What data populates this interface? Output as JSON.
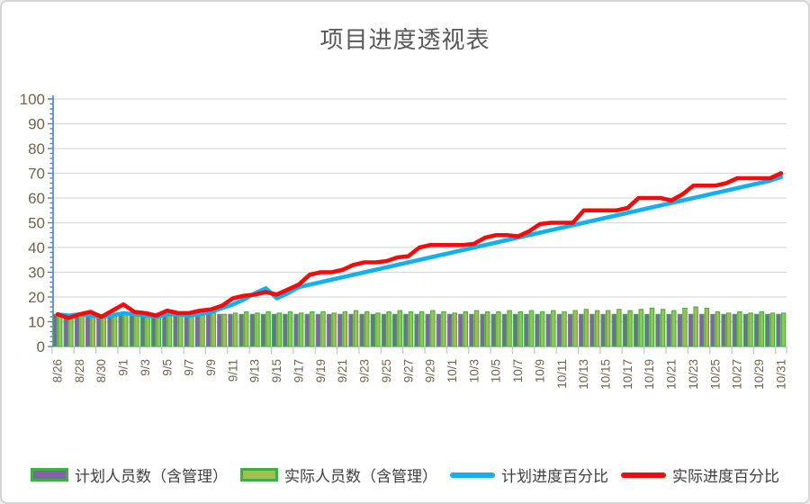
{
  "title": "项目进度透视表",
  "style": {
    "background": "#ffffff",
    "frame_border": "#d5d5d5",
    "title_color": "#595959",
    "grid_color": "#d9d9d9",
    "y_axis_color": "#4f81bd",
    "x_axis_color": "#c3c3c3",
    "axis_label_color": "#70634f",
    "legend_text_color": "#3f3f3f"
  },
  "chart_data": {
    "type": "combo-bar-line",
    "title": "项目进度透视表",
    "xlabel": "",
    "ylabel": "",
    "ylim": [
      0,
      100
    ],
    "y_ticks": [
      0,
      10,
      20,
      30,
      40,
      50,
      60,
      70,
      80,
      90,
      100
    ],
    "grid": true,
    "legend_position": "bottom",
    "x_label_every": 2,
    "x": [
      "8/26",
      "8/27",
      "8/28",
      "8/29",
      "8/30",
      "8/31",
      "9/1",
      "9/2",
      "9/3",
      "9/4",
      "9/5",
      "9/6",
      "9/7",
      "9/8",
      "9/9",
      "9/10",
      "9/11",
      "9/12",
      "9/13",
      "9/14",
      "9/15",
      "9/16",
      "9/17",
      "9/18",
      "9/19",
      "9/20",
      "9/21",
      "9/22",
      "9/23",
      "9/24",
      "9/25",
      "9/26",
      "9/27",
      "9/28",
      "9/29",
      "9/30",
      "10/1",
      "10/2",
      "10/3",
      "10/4",
      "10/5",
      "10/6",
      "10/7",
      "10/8",
      "10/9",
      "10/10",
      "10/11",
      "10/12",
      "10/13",
      "10/14",
      "10/15",
      "10/16",
      "10/17",
      "10/18",
      "10/19",
      "10/20",
      "10/21",
      "10/22",
      "10/23",
      "10/24",
      "10/25",
      "10/26",
      "10/27",
      "10/28",
      "10/29",
      "10/30",
      "10/31"
    ],
    "x_tick_labels": [
      "8/26",
      "8/28",
      "8/30",
      "9/1",
      "9/3",
      "9/5",
      "9/7",
      "9/9",
      "9/11",
      "9/13",
      "9/15",
      "9/17",
      "9/19",
      "9/21",
      "9/23",
      "9/25",
      "9/27",
      "9/29",
      "10/1",
      "10/3",
      "10/5",
      "10/7",
      "10/9",
      "10/11",
      "10/13",
      "10/15",
      "10/17",
      "10/19",
      "10/21",
      "10/23",
      "10/25",
      "10/27",
      "10/29",
      "10/31"
    ],
    "series": [
      {
        "name": "计划人员数（含管理）",
        "type": "bar",
        "color": "#8064a2",
        "border": "#3cb043",
        "values": [
          13,
          13,
          13,
          13,
          13,
          13,
          13,
          13,
          13,
          13,
          13,
          13,
          13,
          13,
          13,
          13,
          13,
          13,
          13,
          13,
          13,
          13,
          13,
          13,
          13,
          13,
          13,
          13,
          13,
          13,
          13,
          13,
          13,
          13,
          13,
          13,
          13,
          13,
          13,
          13,
          13,
          13,
          13,
          13,
          13,
          13,
          13,
          13,
          13,
          13,
          13,
          13,
          13,
          13,
          13,
          13,
          13,
          13,
          13,
          13,
          13,
          13,
          13,
          13,
          13,
          13,
          13
        ]
      },
      {
        "name": "实际人员数（含管理）",
        "type": "bar",
        "color": "#a2bd51",
        "border": "#3cb043",
        "values": [
          12.5,
          13,
          12.5,
          13,
          13,
          13.5,
          13,
          12.5,
          13,
          13.5,
          13,
          13.5,
          13,
          13.5,
          13.5,
          13,
          13.5,
          14,
          13.5,
          14,
          13.5,
          14,
          13.5,
          14,
          14,
          13.5,
          14,
          14.5,
          14,
          13.5,
          14,
          14.5,
          14,
          14,
          14.5,
          14,
          13.5,
          14,
          14.5,
          14,
          14,
          14.5,
          14,
          14.5,
          14,
          14.5,
          14,
          14.5,
          15,
          14.5,
          14.5,
          15,
          14.5,
          15,
          15.5,
          15,
          14.5,
          15.5,
          16,
          15.5,
          14,
          13.5,
          14,
          13.5,
          14,
          13.5,
          13.5
        ]
      },
      {
        "name": "计划进度百分比",
        "type": "line",
        "color": "#12b0ef",
        "values": [
          13,
          12.5,
          13,
          12.5,
          12,
          12.5,
          13.5,
          13,
          12.5,
          12,
          13,
          13,
          12.5,
          13,
          14,
          15.5,
          17,
          19,
          21.5,
          23.5,
          19.5,
          21.5,
          24,
          25,
          26,
          27,
          28,
          29,
          30,
          31,
          32,
          33,
          34,
          35,
          36,
          37,
          38,
          39,
          40,
          41,
          42,
          43,
          44,
          45,
          46,
          47,
          48,
          49,
          50,
          51,
          52,
          53,
          54,
          55,
          56,
          57,
          58,
          59,
          60,
          61,
          62,
          63,
          64,
          65,
          66,
          67,
          68.5
        ]
      },
      {
        "name": "实际进度百分比",
        "type": "line",
        "color": "#f40b0b",
        "values": [
          13,
          11.5,
          13,
          14,
          12,
          14.5,
          17,
          14,
          13.5,
          12.5,
          14.5,
          13.5,
          13.5,
          14.5,
          15,
          16.5,
          19.5,
          20.5,
          21,
          22,
          21,
          23,
          25,
          29,
          30,
          30,
          31,
          33,
          34,
          34,
          34.5,
          36,
          36.5,
          40,
          41,
          41,
          41,
          41,
          41.5,
          44,
          45,
          45,
          44.5,
          46.5,
          49.5,
          50,
          50,
          50,
          55,
          55,
          55,
          55,
          56,
          60,
          60,
          60,
          59,
          61.5,
          65,
          65,
          65,
          66,
          68,
          68,
          68,
          68,
          70
        ]
      }
    ]
  }
}
